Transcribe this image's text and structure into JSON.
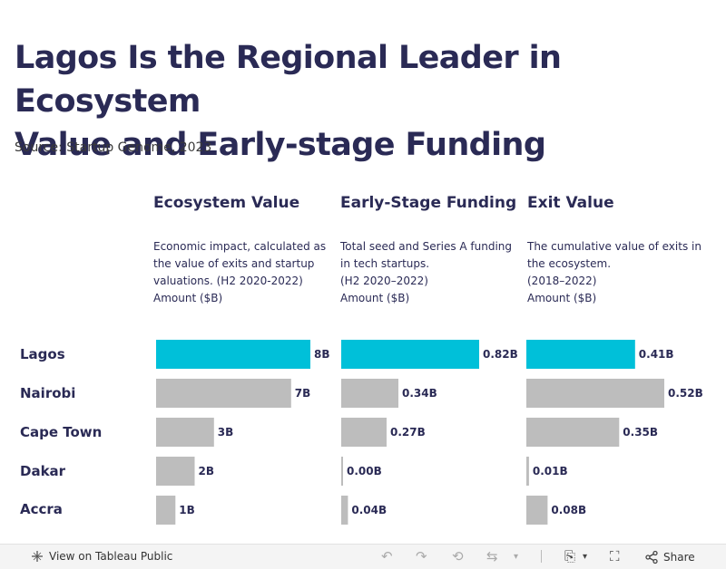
{
  "title_line1": "Lagos Is the Regional Leader in Ecosystem",
  "title_line2": "Value and Early-stage Funding",
  "source": "Source: Startup Genome, 2023",
  "colors": {
    "highlight": "#00c0d9",
    "neutral": "#bdbdbd",
    "text": "#2a2a55"
  },
  "chart_data": {
    "type": "bar",
    "orientation": "horizontal",
    "title": "Lagos Is the Regional Leader in Ecosystem Value and Early-stage Funding",
    "categories": [
      "Lagos",
      "Nairobi",
      "Cape Town",
      "Dakar",
      "Accra"
    ],
    "highlight_category": "Lagos",
    "series": [
      {
        "name": "Ecosystem Value",
        "description": [
          "Economic impact, calculated as",
          "the value of exits and startup",
          "valuations. (H2 2020-2022)",
          "Amount ($B)"
        ],
        "values": [
          8,
          7,
          3,
          2,
          1
        ],
        "labels": [
          "8B",
          "7B",
          "3B",
          "2B",
          "1B"
        ],
        "max": 8
      },
      {
        "name": "Early-Stage Funding",
        "description": [
          "Total seed and Series A funding",
          "in tech startups.",
          "(H2 2020–2022)",
          "Amount ($B)"
        ],
        "values": [
          0.82,
          0.34,
          0.27,
          0.0,
          0.04
        ],
        "labels": [
          "0.82B",
          "0.34B",
          "0.27B",
          "0.00B",
          "0.04B"
        ],
        "max": 0.82
      },
      {
        "name": "Exit Value",
        "description": [
          "The cumulative value of exits in",
          "the ecosystem.",
          "(2018–2022)",
          "Amount ($B)"
        ],
        "values": [
          0.41,
          0.52,
          0.35,
          0.01,
          0.08
        ],
        "labels": [
          "0.41B",
          "0.52B",
          "0.35B",
          "0.01B",
          "0.08B"
        ],
        "max": 0.52
      }
    ]
  },
  "footer": {
    "view_label": "View on Tableau Public",
    "share_label": "Share"
  }
}
